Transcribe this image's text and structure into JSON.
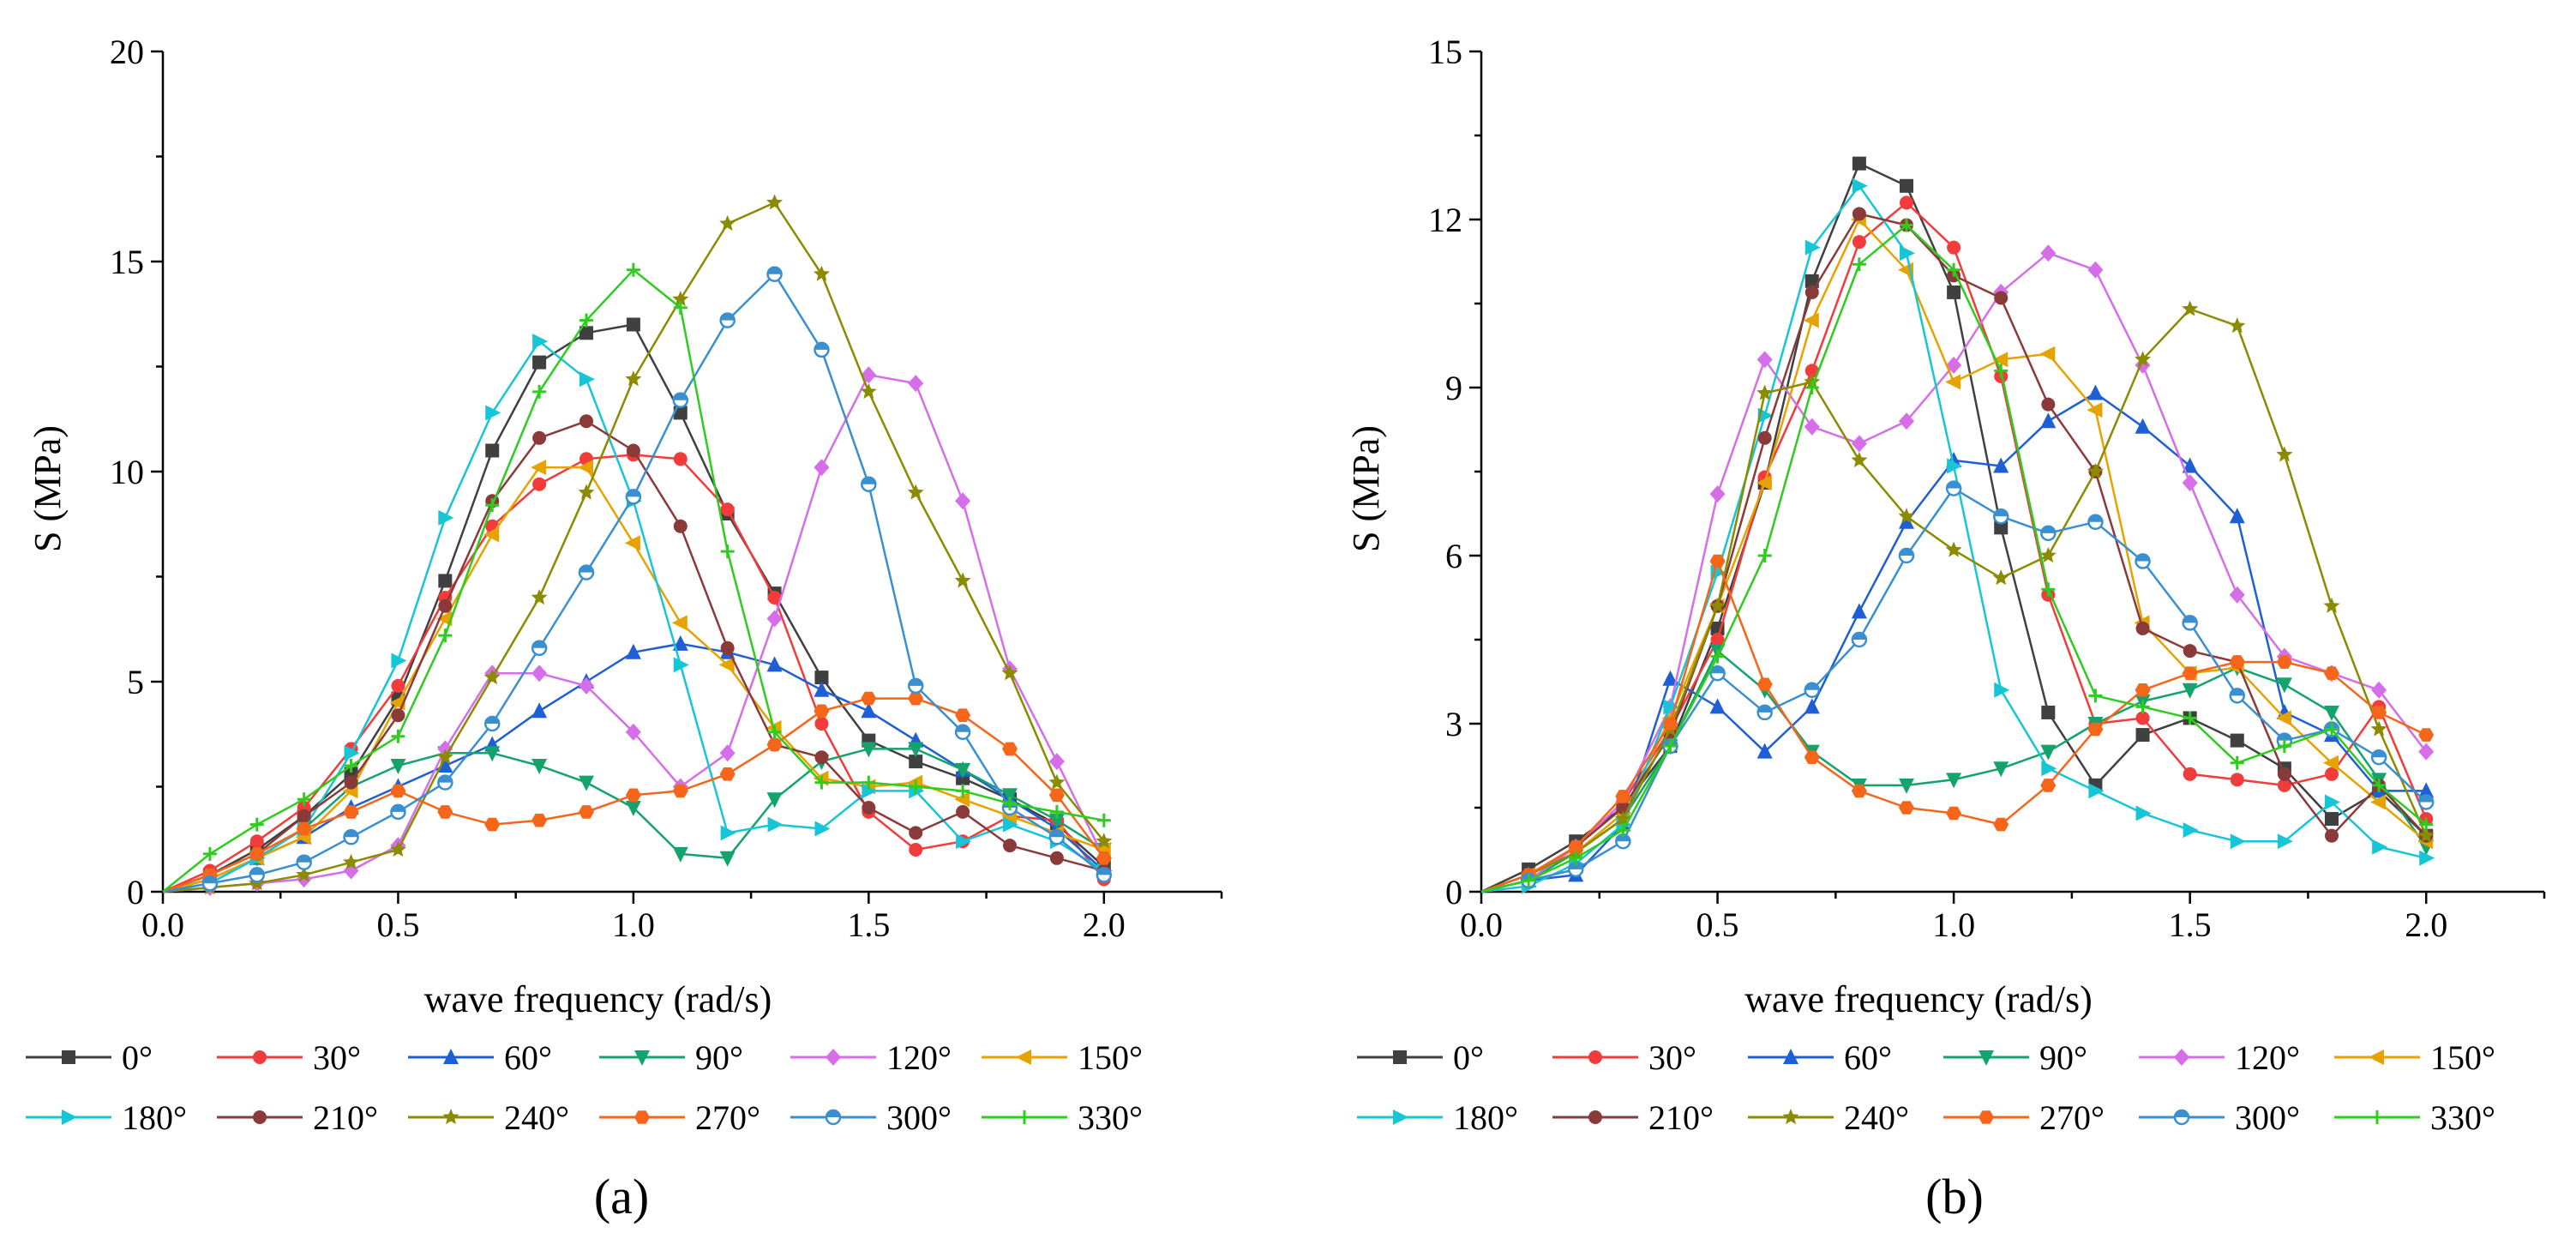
{
  "chart_data": [
    {
      "type": "line",
      "panel_label": "(a)",
      "xlabel": "wave frequency (rad/s)",
      "ylabel": "S (MPa)",
      "xlim": [
        0,
        2.25
      ],
      "ylim": [
        0,
        20
      ],
      "x_ticks": [
        0.0,
        0.5,
        1.0,
        1.5,
        2.0
      ],
      "x_tick_labels": [
        "0.0",
        "0.5",
        "1.0",
        "1.5",
        "2.0"
      ],
      "y_ticks": [
        0,
        5,
        10,
        15,
        20
      ],
      "y_tick_labels": [
        "0",
        "5",
        "10",
        "15",
        "20"
      ],
      "x": [
        0.0,
        0.1,
        0.2,
        0.3,
        0.4,
        0.5,
        0.6,
        0.7,
        0.8,
        0.9,
        1.0,
        1.1,
        1.2,
        1.3,
        1.4,
        1.5,
        1.6,
        1.7,
        1.8,
        1.9,
        2.0
      ],
      "series": [
        {
          "name": "0°",
          "color": "#404040",
          "marker": "square",
          "values": [
            0,
            0.4,
            1.0,
            1.8,
            2.8,
            4.6,
            7.4,
            10.5,
            12.6,
            13.3,
            13.5,
            11.4,
            9.0,
            7.1,
            5.1,
            3.6,
            3.1,
            2.7,
            2.2,
            1.6,
            0.6
          ]
        },
        {
          "name": "30°",
          "color": "#f23b3b",
          "marker": "circle",
          "values": [
            0,
            0.5,
            1.2,
            2.0,
            3.4,
            4.9,
            7.0,
            8.7,
            9.7,
            10.3,
            10.4,
            10.3,
            9.1,
            7.0,
            4.0,
            1.9,
            1.0,
            1.2,
            1.8,
            1.7,
            0.3
          ]
        },
        {
          "name": "60°",
          "color": "#1f5fd6",
          "marker": "triangle-up",
          "values": [
            0,
            0.3,
            0.8,
            1.3,
            2.0,
            2.5,
            3.0,
            3.5,
            4.3,
            5.0,
            5.7,
            5.9,
            5.7,
            5.4,
            4.8,
            4.3,
            3.6,
            2.9,
            2.2,
            1.5,
            0.5
          ]
        },
        {
          "name": "90°",
          "color": "#15a36c",
          "marker": "triangle-down",
          "values": [
            0,
            0.2,
            0.8,
            1.5,
            2.5,
            3.0,
            3.3,
            3.3,
            3.0,
            2.6,
            2.0,
            0.9,
            0.8,
            2.2,
            3.1,
            3.4,
            3.4,
            2.9,
            2.3,
            1.7,
            1.0
          ]
        },
        {
          "name": "120°",
          "color": "#d56ee8",
          "marker": "diamond",
          "values": [
            0,
            0.1,
            0.2,
            0.3,
            0.5,
            1.1,
            3.4,
            5.2,
            5.2,
            4.9,
            3.8,
            2.5,
            3.3,
            6.5,
            10.1,
            12.3,
            12.1,
            9.3,
            5.3,
            3.1,
            0.8
          ]
        },
        {
          "name": "150°",
          "color": "#e6a300",
          "marker": "triangle-left",
          "values": [
            0,
            0.3,
            0.8,
            1.3,
            2.4,
            4.5,
            6.5,
            8.5,
            10.1,
            10.1,
            8.3,
            6.4,
            5.4,
            3.9,
            2.7,
            2.5,
            2.6,
            2.2,
            1.8,
            1.4,
            1.0
          ]
        },
        {
          "name": "180°",
          "color": "#17c6d6",
          "marker": "triangle-right",
          "values": [
            0,
            0.2,
            0.8,
            1.5,
            3.3,
            5.5,
            8.9,
            11.4,
            13.1,
            12.2,
            9.3,
            5.4,
            1.4,
            1.6,
            1.5,
            2.4,
            2.4,
            1.2,
            1.6,
            1.2,
            0.5
          ]
        },
        {
          "name": "210°",
          "color": "#8b3a3a",
          "marker": "circle",
          "values": [
            0,
            0.4,
            0.9,
            1.8,
            2.6,
            4.2,
            6.8,
            9.3,
            10.8,
            11.2,
            10.5,
            8.7,
            5.8,
            3.5,
            3.2,
            2.0,
            1.4,
            1.9,
            1.1,
            0.8,
            0.5
          ]
        },
        {
          "name": "240°",
          "color": "#8b8b00",
          "marker": "star",
          "values": [
            0,
            0.1,
            0.2,
            0.4,
            0.7,
            1.0,
            3.2,
            5.1,
            7.0,
            9.5,
            12.2,
            14.1,
            15.9,
            16.4,
            14.7,
            11.9,
            9.5,
            7.4,
            5.2,
            2.6,
            1.2
          ]
        },
        {
          "name": "270°",
          "color": "#f5651a",
          "marker": "hexagon",
          "values": [
            0,
            0.4,
            0.9,
            1.5,
            1.9,
            2.4,
            1.9,
            1.6,
            1.7,
            1.9,
            2.3,
            2.4,
            2.8,
            3.5,
            4.3,
            4.6,
            4.6,
            4.2,
            3.4,
            2.3,
            0.8
          ]
        },
        {
          "name": "300°",
          "color": "#3a8fd1",
          "marker": "circle-half",
          "values": [
            0,
            0.2,
            0.4,
            0.7,
            1.3,
            1.9,
            2.6,
            4.0,
            5.8,
            7.6,
            9.4,
            11.7,
            13.6,
            14.7,
            12.9,
            9.7,
            4.9,
            3.8,
            2.0,
            1.3,
            0.4
          ]
        },
        {
          "name": "330°",
          "color": "#2ecc1f",
          "marker": "plus",
          "values": [
            0,
            0.9,
            1.6,
            2.2,
            3.0,
            3.7,
            6.1,
            9.2,
            11.9,
            13.6,
            14.8,
            13.9,
            8.1,
            3.8,
            2.6,
            2.6,
            2.5,
            2.4,
            2.1,
            1.9,
            1.7
          ]
        }
      ]
    },
    {
      "type": "line",
      "panel_label": "(b)",
      "xlabel": "wave frequency (rad/s)",
      "ylabel": "S (MPa)",
      "xlim": [
        0,
        2.25
      ],
      "ylim": [
        0,
        15
      ],
      "x_ticks": [
        0.0,
        0.5,
        1.0,
        1.5,
        2.0
      ],
      "x_tick_labels": [
        "0.0",
        "0.5",
        "1.0",
        "1.5",
        "2.0"
      ],
      "y_ticks": [
        0,
        3,
        6,
        9,
        12,
        15
      ],
      "y_tick_labels": [
        "0",
        "3",
        "6",
        "9",
        "12",
        "15"
      ],
      "x": [
        0.0,
        0.1,
        0.2,
        0.3,
        0.4,
        0.5,
        0.6,
        0.7,
        0.8,
        0.9,
        1.0,
        1.1,
        1.2,
        1.3,
        1.4,
        1.5,
        1.6,
        1.7,
        1.8,
        1.9,
        2.0
      ],
      "series": [
        {
          "name": "0°",
          "color": "#404040",
          "marker": "square",
          "values": [
            0,
            0.4,
            0.9,
            1.5,
            2.6,
            4.7,
            7.3,
            10.9,
            13.0,
            12.6,
            10.7,
            6.5,
            3.2,
            1.9,
            2.8,
            3.1,
            2.7,
            2.2,
            1.3,
            1.8,
            1.0
          ]
        },
        {
          "name": "30°",
          "color": "#f23b3b",
          "marker": "circle",
          "values": [
            0,
            0.3,
            0.8,
            1.6,
            2.9,
            4.5,
            7.4,
            9.3,
            11.6,
            12.3,
            11.5,
            9.2,
            5.3,
            3.0,
            3.1,
            2.1,
            2.0,
            1.9,
            2.1,
            3.3,
            1.3
          ]
        },
        {
          "name": "60°",
          "color": "#1f5fd6",
          "marker": "triangle-up",
          "values": [
            0,
            0.2,
            0.3,
            1.2,
            3.8,
            3.3,
            2.5,
            3.3,
            5.0,
            6.6,
            7.7,
            7.6,
            8.4,
            8.9,
            8.3,
            7.6,
            6.7,
            3.2,
            2.8,
            1.8,
            1.8
          ]
        },
        {
          "name": "90°",
          "color": "#15a36c",
          "marker": "triangle-down",
          "values": [
            0,
            0.2,
            0.7,
            1.3,
            2.6,
            4.3,
            3.6,
            2.5,
            1.9,
            1.9,
            2.0,
            2.2,
            2.5,
            3.0,
            3.4,
            3.6,
            4.0,
            3.7,
            3.2,
            2.0,
            0.8
          ]
        },
        {
          "name": "120°",
          "color": "#d56ee8",
          "marker": "diamond",
          "values": [
            0,
            0.2,
            0.8,
            1.6,
            3.3,
            7.1,
            9.5,
            8.3,
            8.0,
            8.4,
            9.4,
            10.7,
            11.4,
            11.1,
            9.4,
            7.3,
            5.3,
            4.2,
            3.9,
            3.6,
            2.5
          ]
        },
        {
          "name": "150°",
          "color": "#e6a300",
          "marker": "triangle-left",
          "values": [
            0,
            0.3,
            0.7,
            1.4,
            3.1,
            5.1,
            7.3,
            10.2,
            12.0,
            11.1,
            9.1,
            9.5,
            9.6,
            8.6,
            4.8,
            3.9,
            4.0,
            3.1,
            2.3,
            1.6,
            0.9
          ]
        },
        {
          "name": "180°",
          "color": "#17c6d6",
          "marker": "triangle-right",
          "values": [
            0,
            0.1,
            0.5,
            1.2,
            3.3,
            5.7,
            8.5,
            11.5,
            12.6,
            11.4,
            7.6,
            3.6,
            2.2,
            1.8,
            1.4,
            1.1,
            0.9,
            0.9,
            1.6,
            0.8,
            0.6
          ]
        },
        {
          "name": "210°",
          "color": "#8b3a3a",
          "marker": "circle",
          "values": [
            0,
            0.3,
            0.8,
            1.5,
            2.8,
            5.1,
            8.1,
            10.7,
            12.1,
            11.9,
            11.0,
            10.6,
            8.7,
            7.5,
            4.7,
            4.3,
            4.1,
            2.1,
            1.0,
            1.9,
            1.0
          ]
        },
        {
          "name": "240°",
          "color": "#8b8b00",
          "marker": "star",
          "values": [
            0,
            0.3,
            0.7,
            1.3,
            2.9,
            5.1,
            8.9,
            9.1,
            7.7,
            6.7,
            6.1,
            5.6,
            6.0,
            7.5,
            9.5,
            10.4,
            10.1,
            7.8,
            5.1,
            2.9,
            1.0
          ]
        },
        {
          "name": "270°",
          "color": "#f5651a",
          "marker": "hexagon",
          "values": [
            0,
            0.3,
            0.8,
            1.7,
            3.0,
            5.9,
            3.7,
            2.4,
            1.8,
            1.5,
            1.4,
            1.2,
            1.9,
            2.9,
            3.6,
            3.9,
            4.1,
            4.1,
            3.9,
            3.2,
            2.8
          ]
        },
        {
          "name": "300°",
          "color": "#3a8fd1",
          "marker": "circle-half",
          "values": [
            0,
            0.2,
            0.4,
            0.9,
            2.6,
            3.9,
            3.2,
            3.6,
            4.5,
            6.0,
            7.2,
            6.7,
            6.4,
            6.6,
            5.9,
            4.8,
            3.5,
            2.7,
            2.9,
            2.4,
            1.6
          ]
        },
        {
          "name": "330°",
          "color": "#2ecc1f",
          "marker": "plus",
          "values": [
            0,
            0.2,
            0.6,
            1.1,
            2.6,
            4.2,
            6.0,
            9.0,
            11.2,
            11.9,
            11.1,
            9.3,
            5.4,
            3.5,
            3.3,
            3.1,
            2.3,
            2.6,
            2.9,
            1.9,
            1.2
          ]
        }
      ]
    }
  ]
}
